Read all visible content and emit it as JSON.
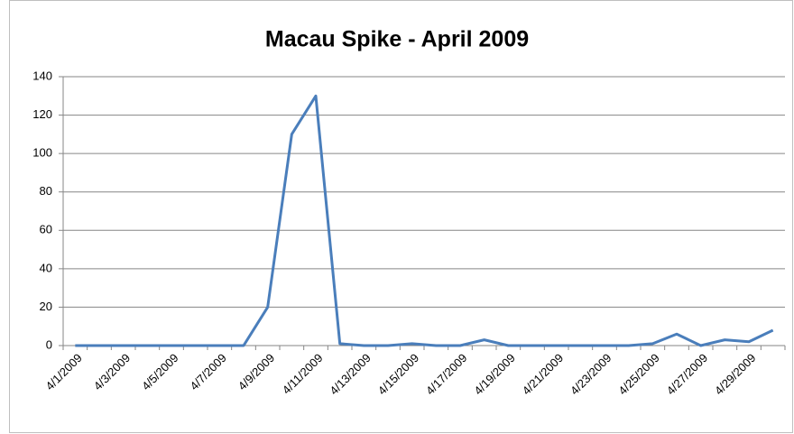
{
  "chart_data": {
    "type": "line",
    "title": "Macau Spike - April 2009",
    "categories": [
      "4/1/2009",
      null,
      "4/3/2009",
      null,
      "4/5/2009",
      null,
      "4/7/2009",
      null,
      "4/9/2009",
      null,
      "4/11/2009",
      null,
      "4/13/2009",
      null,
      "4/15/2009",
      null,
      "4/17/2009",
      null,
      "4/19/2009",
      null,
      "4/21/2009",
      null,
      "4/23/2009",
      null,
      "4/25/2009",
      null,
      "4/27/2009",
      null,
      "4/29/2009",
      null
    ],
    "series": [
      {
        "color": "#4a7ebb",
        "values": [
          0,
          0,
          0,
          0,
          0,
          0,
          0,
          0,
          20,
          110,
          130,
          1,
          0,
          0,
          1,
          0,
          0,
          3,
          0,
          0,
          0,
          0,
          0,
          0,
          1,
          6,
          0,
          3,
          2,
          8
        ]
      }
    ],
    "ylim": [
      0,
      140
    ],
    "yticks": [
      0,
      20,
      40,
      60,
      80,
      100,
      120,
      140
    ],
    "grid": true
  }
}
